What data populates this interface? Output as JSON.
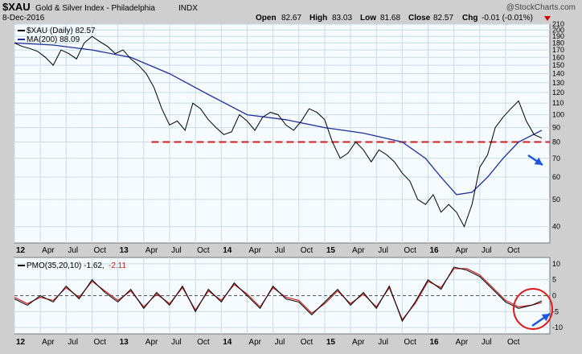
{
  "header": {
    "symbol": "$XAU",
    "name": "Gold & Silver Index - Philadelphia",
    "exchange": "INDX",
    "date": "8-Dec-2016",
    "watermark": "@StockCharts.com",
    "open_label": "Open",
    "open": "82.67",
    "high_label": "High",
    "high": "83.03",
    "low_label": "Low",
    "low": "81.68",
    "close_label": "Close",
    "close": "82.57",
    "chg_label": "Chg",
    "chg": "-0.01 (-0.01%)"
  },
  "legend": {
    "price": "$XAU (Daily) 82.57",
    "ma": "MA(200) 88.09",
    "pmo": "PMO(35,20,10) -1.62,",
    "pmo_signal": "-2.11"
  },
  "colors": {
    "price": "#000000",
    "ma": "#1f2f9e",
    "pmo": "#000000",
    "pmo_signal": "#cc1f1f",
    "support": "#cc1f1f",
    "arrow": "#1a56e0",
    "circle": "#e01a1a",
    "panel_bg": "#f5fbfe",
    "grid": "#c9dce6",
    "down_triangle": "#cc0000"
  },
  "chart_data": {
    "type": "line",
    "x_ticks": [
      "12",
      "Apr",
      "Jul",
      "Oct",
      "13",
      "Apr",
      "Jul",
      "Oct",
      "14",
      "Apr",
      "Jul",
      "Oct",
      "15",
      "Apr",
      "Jul",
      "Oct",
      "16",
      "Apr",
      "Jul",
      "Oct"
    ],
    "x_ticks_bold": [
      true,
      false,
      false,
      false,
      true,
      false,
      false,
      false,
      true,
      false,
      false,
      false,
      true,
      false,
      false,
      false,
      true,
      false,
      false,
      false
    ],
    "price_panel": {
      "scale": "log",
      "ylim": [
        35,
        210
      ],
      "yticks": [
        40,
        50,
        60,
        70,
        80,
        90,
        100,
        110,
        120,
        130,
        140,
        150,
        160,
        170,
        180,
        190,
        200,
        210
      ],
      "support_level": 80,
      "series": [
        {
          "name": "$XAU (Daily)",
          "x": [
            0,
            0.3,
            0.6,
            0.9,
            1.2,
            1.5,
            1.8,
            2.1,
            2.4,
            2.7,
            3.0,
            3.3,
            3.6,
            3.9,
            4.2,
            4.5,
            4.8,
            5.1,
            5.4,
            5.7,
            6.0,
            6.3,
            6.6,
            6.9,
            7.2,
            7.5,
            7.8,
            8.1,
            8.4,
            8.7,
            9.0,
            9.3,
            9.6,
            9.9,
            10.2,
            10.5,
            10.8,
            11.1,
            11.4,
            11.7,
            12.0,
            12.3,
            12.6,
            12.9,
            13.2,
            13.5,
            13.8,
            14.1,
            14.4,
            14.7,
            15.0,
            15.3,
            15.6,
            15.9,
            16.2,
            16.5,
            16.8,
            17.1,
            17.4,
            17.7,
            18.0,
            18.3,
            18.6,
            18.9,
            19.2,
            19.5,
            19.8,
            20.1,
            20.4
          ],
          "y": [
            180,
            175,
            172,
            168,
            160,
            150,
            170,
            165,
            158,
            180,
            190,
            182,
            175,
            165,
            170,
            158,
            150,
            140,
            125,
            105,
            92,
            95,
            88,
            110,
            105,
            96,
            90,
            85,
            87,
            100,
            95,
            88,
            98,
            102,
            100,
            92,
            88,
            95,
            105,
            102,
            96,
            80,
            70,
            73,
            80,
            75,
            68,
            75,
            72,
            68,
            62,
            58,
            50,
            48,
            52,
            45,
            48,
            45,
            40,
            48,
            65,
            72,
            90,
            98,
            105,
            112,
            95,
            85,
            82.57
          ]
        },
        {
          "name": "MA(200)",
          "x": [
            0,
            1.5,
            3.0,
            4.5,
            6.0,
            7.5,
            9.0,
            10.5,
            12.0,
            13.5,
            15.0,
            15.9,
            16.5,
            17.1,
            17.7,
            18.3,
            18.9,
            19.5,
            20.4
          ],
          "y": [
            180,
            177,
            170,
            160,
            140,
            118,
            100,
            96,
            90,
            86,
            80,
            70,
            60,
            52,
            53,
            60,
            70,
            80,
            88.09
          ]
        }
      ]
    },
    "pmo_panel": {
      "ylim": [
        -12,
        12
      ],
      "yticks": [
        10,
        5,
        0,
        -5,
        -10
      ],
      "series": [
        {
          "name": "PMO(35,20,10)",
          "x": [
            0,
            0.5,
            1.0,
            1.5,
            2.0,
            2.5,
            3.0,
            3.5,
            4.0,
            4.5,
            5.0,
            5.5,
            6.0,
            6.5,
            7.0,
            7.5,
            8.0,
            8.5,
            9.0,
            9.5,
            10.0,
            10.5,
            11.0,
            11.5,
            12.0,
            12.5,
            13.0,
            13.5,
            14.0,
            14.5,
            15.0,
            15.5,
            16.0,
            16.5,
            17.0,
            17.5,
            18.0,
            18.5,
            19.0,
            19.5,
            20.0,
            20.4
          ],
          "y": [
            -1,
            -3,
            0,
            -2,
            3,
            -1,
            5,
            1,
            -2,
            2,
            -4,
            1,
            -3,
            3,
            -5,
            2,
            -2,
            4,
            0,
            -4,
            3,
            -1,
            -2,
            -6,
            -2,
            2,
            -3,
            1,
            -4,
            3,
            -8,
            -2,
            5,
            2,
            9,
            8,
            6,
            2,
            -2,
            -4,
            -3,
            -1.62
          ]
        },
        {
          "name": "signal",
          "x": [
            0,
            0.5,
            1.0,
            1.5,
            2.0,
            2.5,
            3.0,
            3.5,
            4.0,
            4.5,
            5.0,
            5.5,
            6.0,
            6.5,
            7.0,
            7.5,
            8.0,
            8.5,
            9.0,
            9.5,
            10.0,
            10.5,
            11.0,
            11.5,
            12.0,
            12.5,
            13.0,
            13.5,
            14.0,
            14.5,
            15.0,
            15.5,
            16.0,
            16.5,
            17.0,
            17.5,
            18.0,
            18.5,
            19.0,
            19.5,
            20.0,
            20.4
          ],
          "y": [
            -0.5,
            -2.5,
            -0.5,
            -1.5,
            2.5,
            -0.5,
            4.5,
            1.5,
            -1.5,
            1.5,
            -3.5,
            0.5,
            -2.5,
            2.5,
            -4.5,
            1.5,
            -1.5,
            3.5,
            0.5,
            -3.5,
            2.5,
            -0.5,
            -1.5,
            -5.5,
            -2.5,
            1.5,
            -2.5,
            0.5,
            -3.5,
            2.5,
            -7.5,
            -2.5,
            4.5,
            2.5,
            8.5,
            8.5,
            6.5,
            2.5,
            -1.5,
            -3.5,
            -3.0,
            -2.11
          ]
        }
      ]
    }
  }
}
